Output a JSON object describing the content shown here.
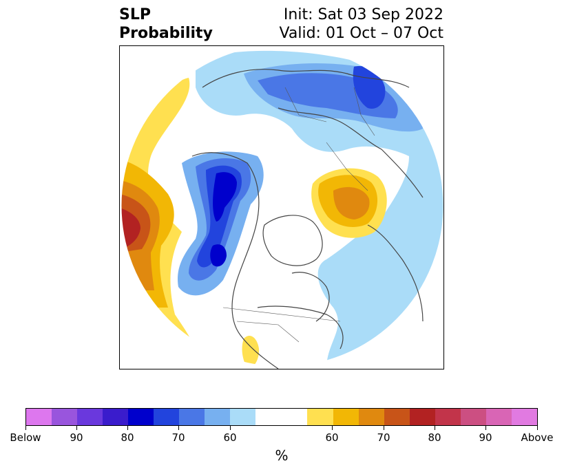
{
  "title": {
    "left_line1": "SLP",
    "left_line2": "Probability",
    "right_line1": "Init: Sat 03 Sep 2022",
    "right_line2": "Valid: 01 Oct – 07 Oct"
  },
  "map": {
    "projection": "north-polar-stereographic",
    "variable": "sea level pressure tercile probability"
  },
  "colorbar": {
    "unit": "%",
    "colors": [
      "#dd77ee",
      "#9955dd",
      "#6a38dd",
      "#3a1ccc",
      "#0000cc",
      "#2244dd",
      "#4a77e6",
      "#77b0f0",
      "#aadcf8",
      "#ffffff",
      "#ffe050",
      "#f2b705",
      "#e0890f",
      "#c85418",
      "#b22222",
      "#c2344a",
      "#cc4f82",
      "#d965b5",
      "#e17ae1"
    ],
    "labels": [
      "Below",
      "90",
      "80",
      "70",
      "60",
      "60",
      "70",
      "80",
      "90",
      "Above"
    ],
    "below_color": "#2244dd",
    "above_color": "#b22222"
  }
}
